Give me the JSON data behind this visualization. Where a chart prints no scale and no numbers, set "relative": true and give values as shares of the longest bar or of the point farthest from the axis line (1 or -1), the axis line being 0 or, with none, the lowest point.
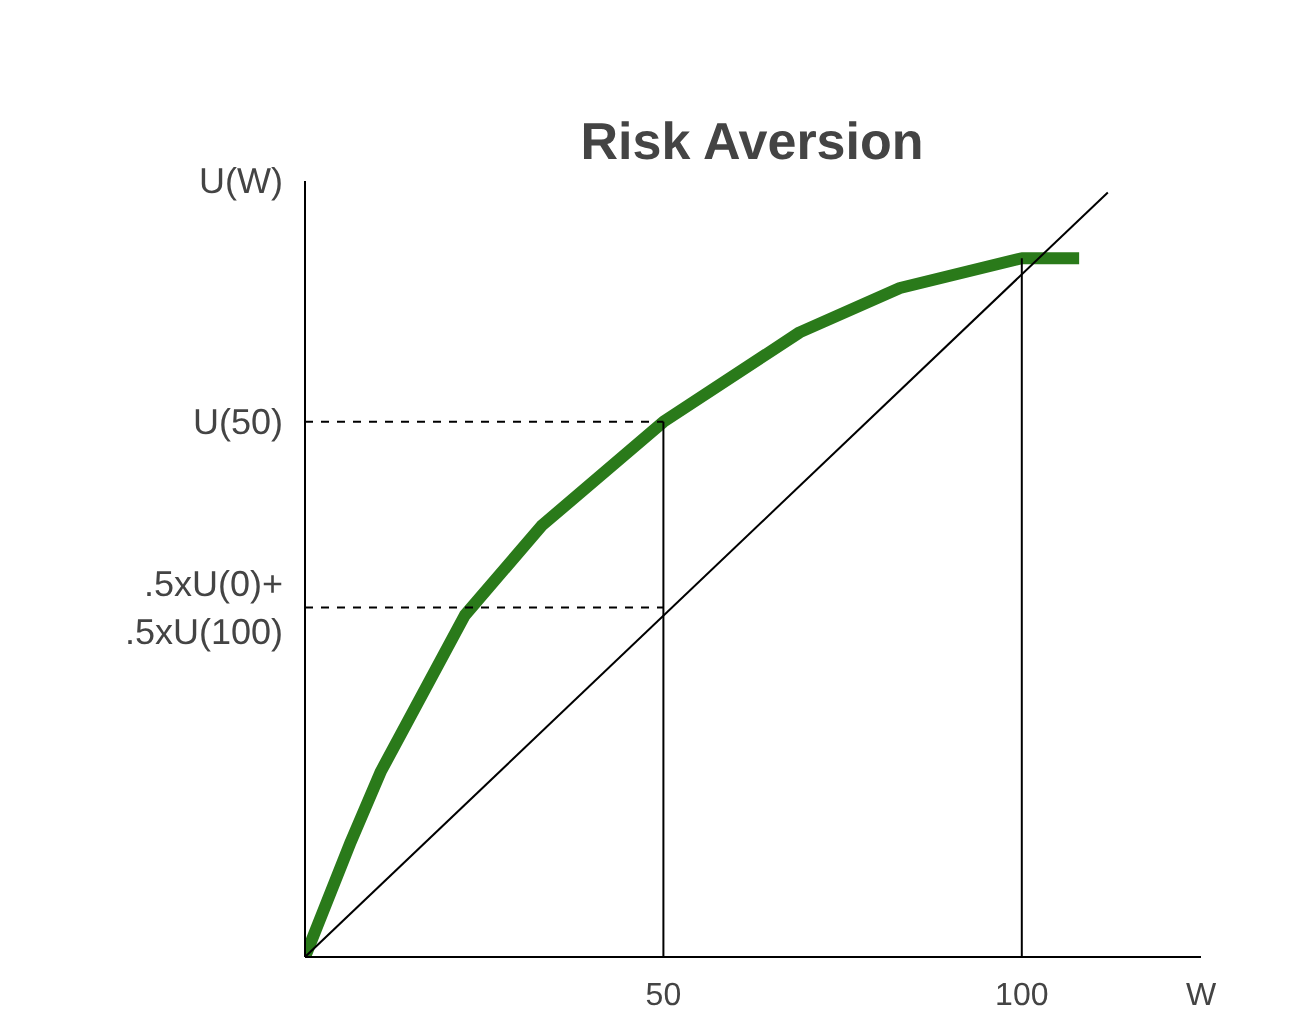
{
  "chart_data": {
    "type": "line",
    "title": "Risk Aversion",
    "xlabel": "W",
    "ylabel": "U(W)",
    "relative": true,
    "xlim": [
      0,
      125
    ],
    "xticks": [
      50,
      100
    ],
    "grid": false,
    "line_style": "solid",
    "series": [
      {
        "color": "#2a7a1a",
        "x": [
          0,
          6.4,
          10.6,
          22.3,
          33,
          50,
          69,
          83,
          100,
          108
        ],
        "values": [
          0,
          0.151,
          0.243,
          0.447,
          0.564,
          0.7,
          0.817,
          0.875,
          0.914,
          0.914
        ]
      },
      {
        "color": "#000000",
        "x": [
          0,
          112
        ],
        "values": [
          0,
          1.0
        ]
      },
      {
        "color": "#000000",
        "x": [
          50,
          50
        ],
        "values": [
          0,
          0.7
        ]
      },
      {
        "color": "#000000",
        "x": [
          100,
          100
        ],
        "values": [
          0,
          0.914
        ]
      },
      {
        "color": "#000000",
        "line_style": "dashed",
        "x": [
          0,
          50
        ],
        "values": [
          0.7,
          0.7
        ]
      },
      {
        "color": "#000000",
        "line_style": "dashed",
        "x": [
          0,
          50
        ],
        "values": [
          0.457,
          0.457
        ]
      }
    ],
    "annotations": [
      {
        "text": "U(50)",
        "x": 0,
        "y": 0.7
      },
      {
        "text": ".5xU(0)+\n.5xU(100)",
        "x": 0,
        "y": 0.457
      }
    ]
  }
}
